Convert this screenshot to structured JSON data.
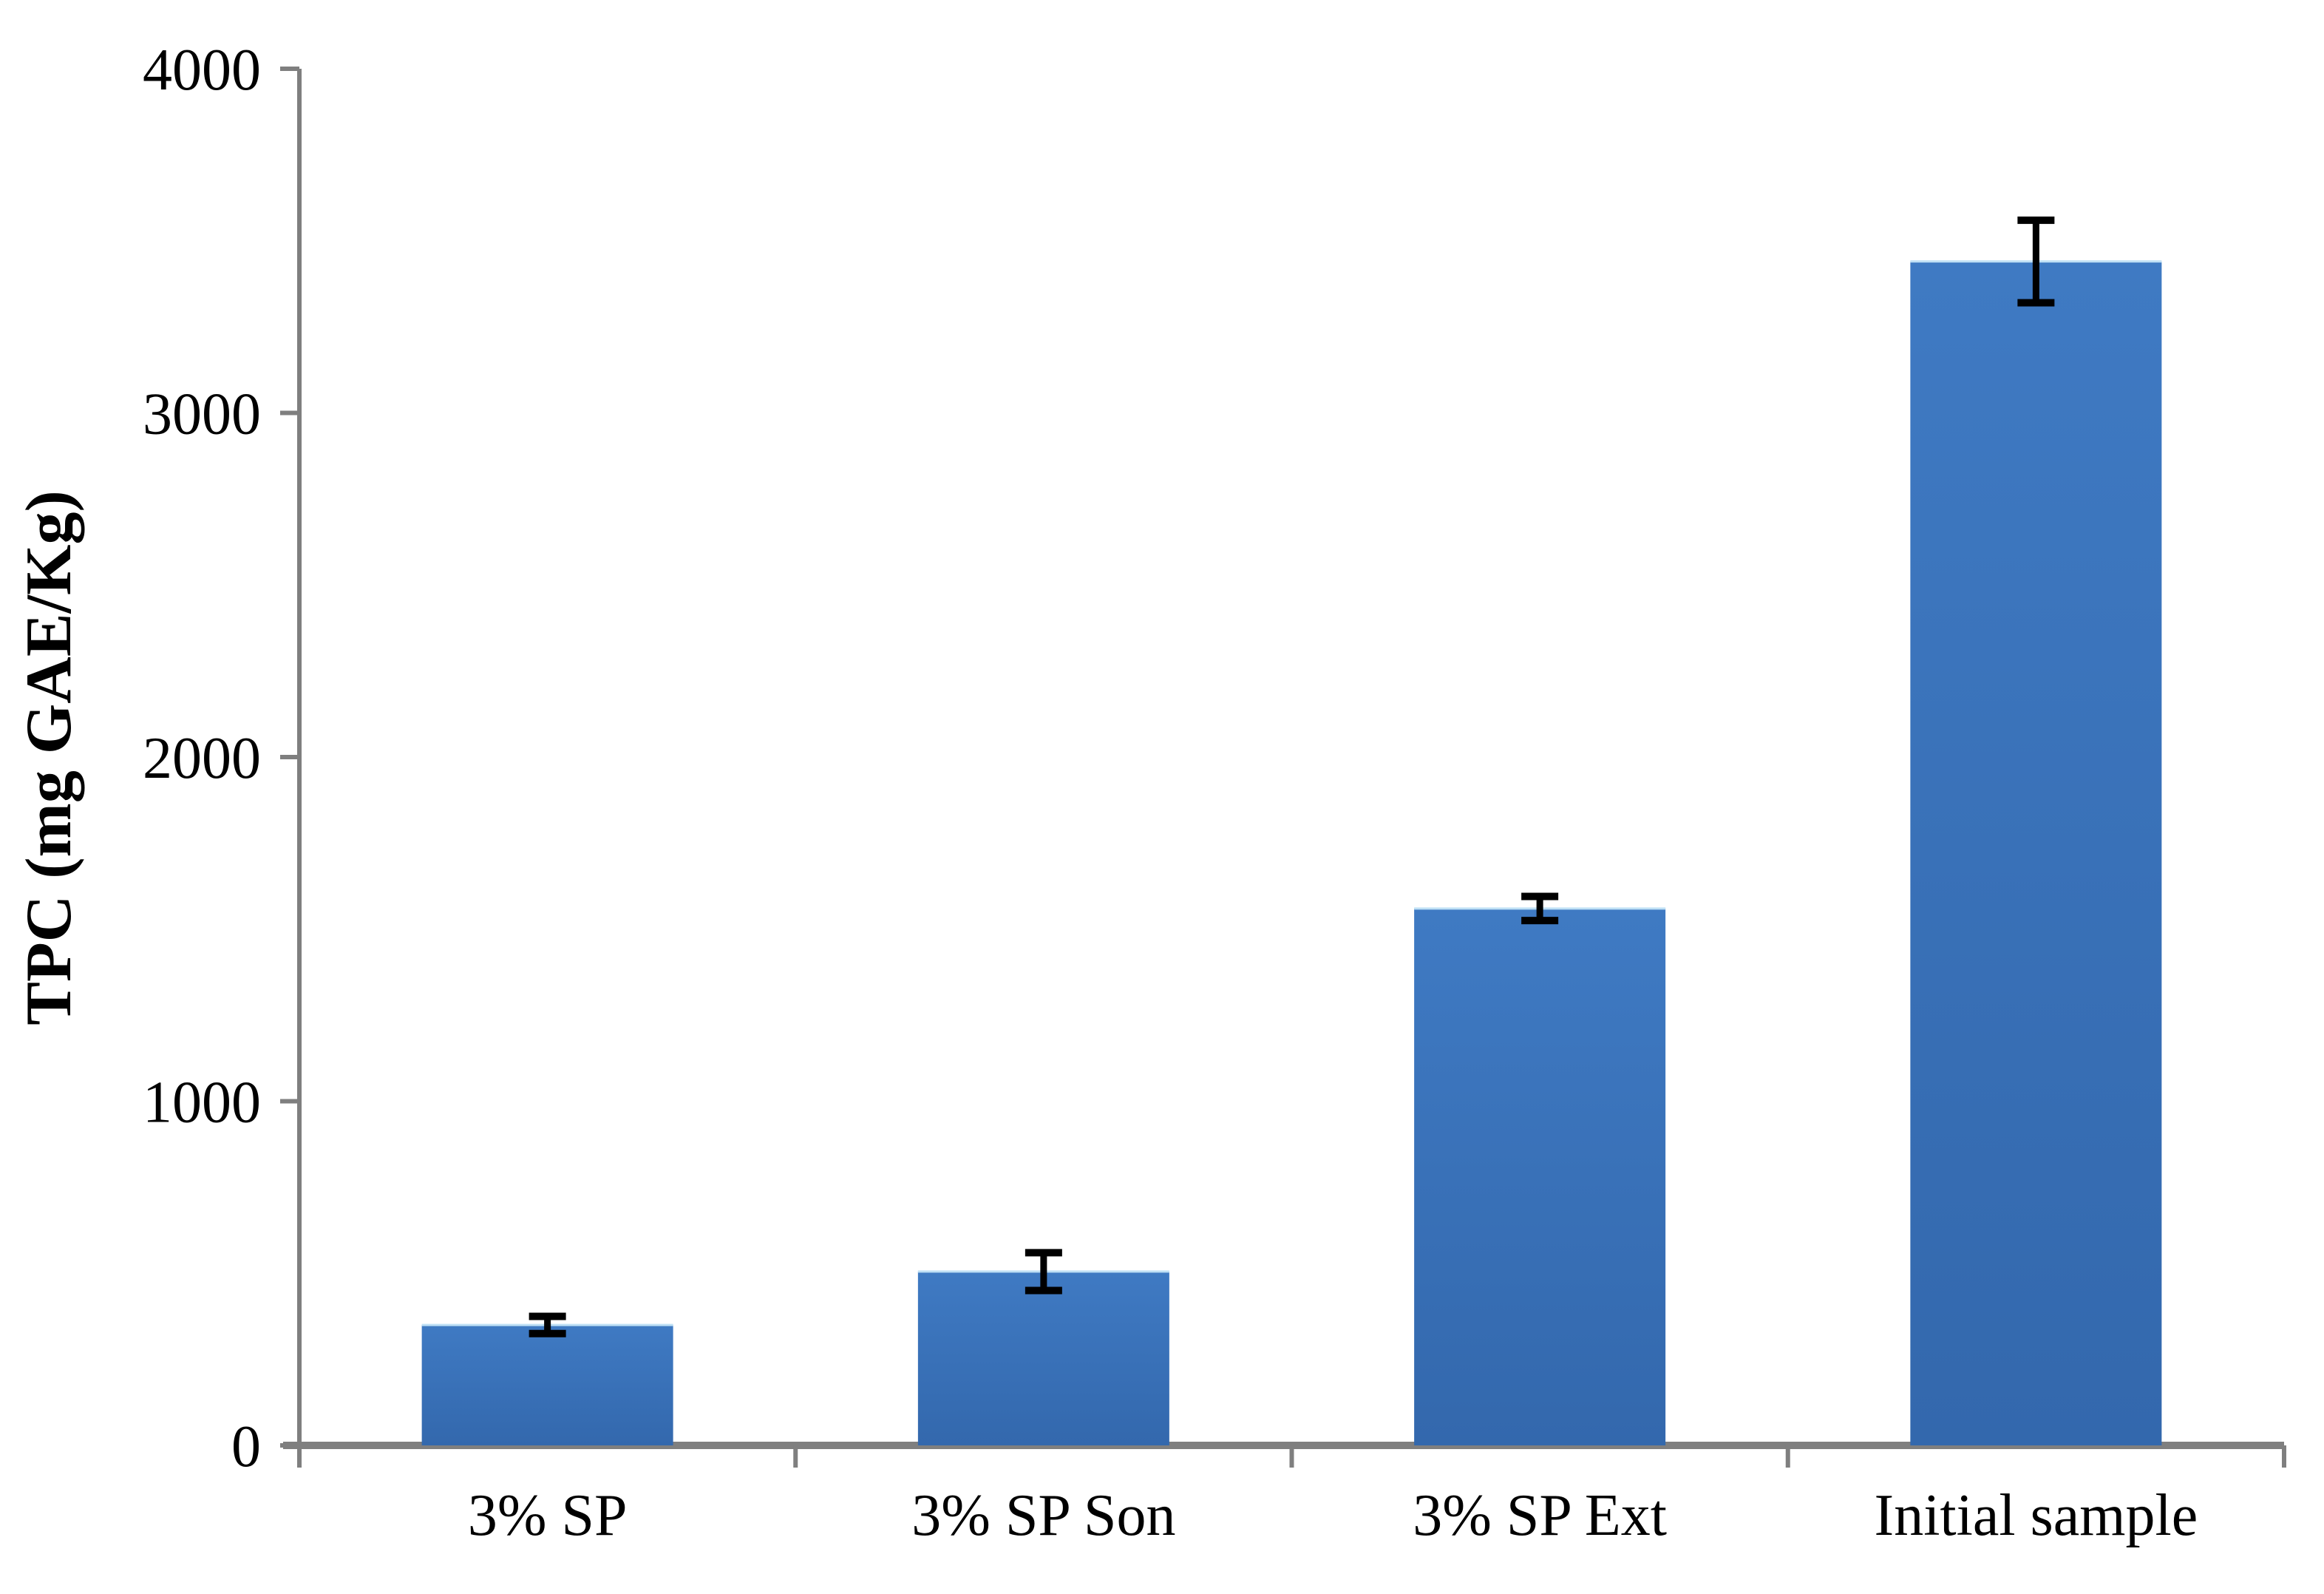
{
  "chart_data": {
    "type": "bar",
    "categories": [
      "3% SP",
      "3% SP Son",
      "3% SP Ext",
      "Initial sample"
    ],
    "values": [
      350,
      505,
      1560,
      3440
    ],
    "errors": [
      25,
      55,
      35,
      120
    ],
    "title": "",
    "xlabel": "",
    "ylabel": "TPC (mg GAE/Kg)",
    "ylim": [
      0,
      4000
    ],
    "yticks": [
      0,
      1000,
      2000,
      3000,
      4000
    ],
    "grid": false,
    "legend": false,
    "colors": {
      "bar_top": "#3F7AC3",
      "bar_bottom": "#3368AD",
      "bar_highlight": "#BFE0F5",
      "axis": "#7F7F7F",
      "error": "#000000",
      "text": "#000000",
      "background": "#FFFFFF"
    }
  }
}
